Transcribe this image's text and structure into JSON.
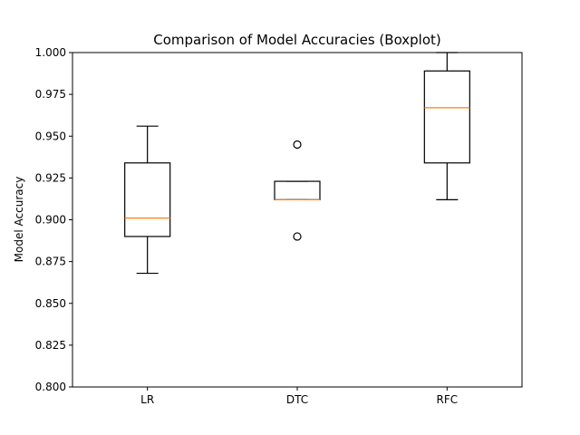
{
  "chart_data": {
    "type": "boxplot",
    "title": "Comparison of Model Accuracies (Boxplot)",
    "xlabel": "",
    "ylabel": "Model Accuracy",
    "ylim": [
      0.8,
      1.0
    ],
    "yticks": [
      0.8,
      0.825,
      0.85,
      0.875,
      0.9,
      0.925,
      0.95,
      0.975,
      1.0
    ],
    "ytick_labels": [
      "0.800",
      "0.825",
      "0.850",
      "0.875",
      "0.900",
      "0.925",
      "0.950",
      "0.975",
      "1.000"
    ],
    "categories": [
      "LR",
      "DTC",
      "RFC"
    ],
    "boxes": [
      {
        "category": "LR",
        "whisker_low": 0.868,
        "q1": 0.89,
        "median": 0.901,
        "q3": 0.934,
        "whisker_high": 0.956,
        "outliers": []
      },
      {
        "category": "DTC",
        "whisker_low": 0.912,
        "q1": 0.912,
        "median": 0.912,
        "q3": 0.923,
        "whisker_high": 0.923,
        "outliers": [
          0.945,
          0.89
        ]
      },
      {
        "category": "RFC",
        "whisker_low": 0.912,
        "q1": 0.934,
        "median": 0.967,
        "q3": 0.989,
        "whisker_high": 1.0,
        "outliers": []
      }
    ],
    "grid": false,
    "colors": {
      "box": "#000000",
      "median": "#ff7f0e",
      "outlier": "#000000"
    }
  }
}
